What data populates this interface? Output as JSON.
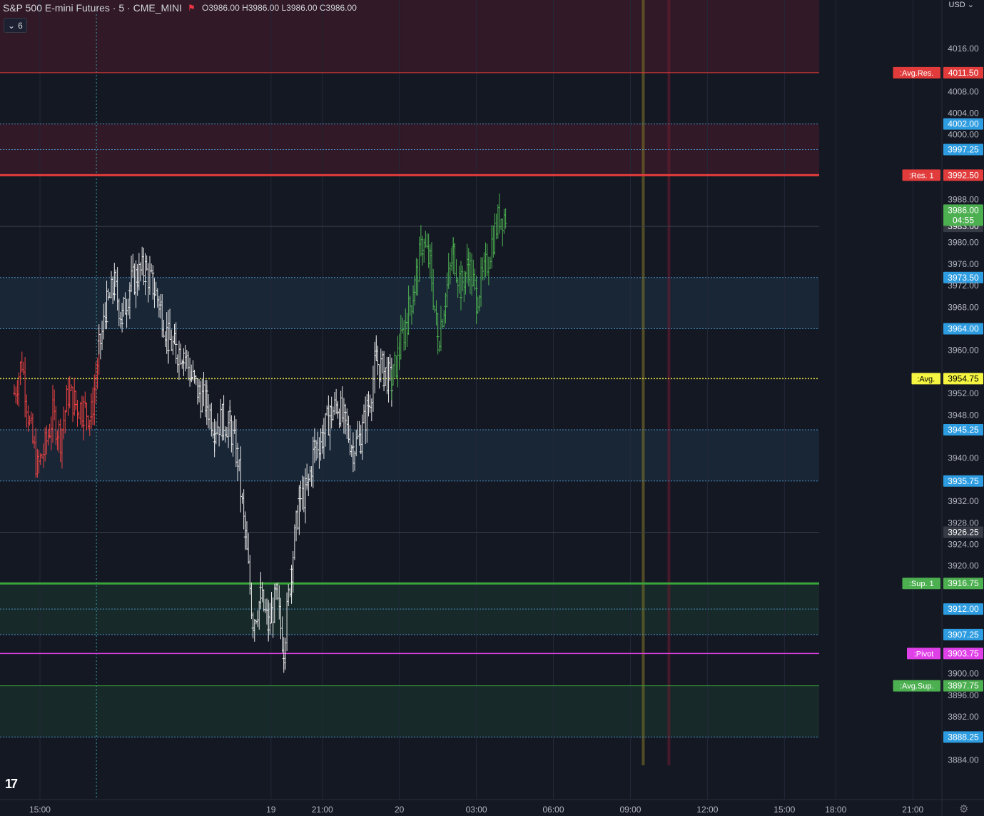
{
  "header": {
    "title": "S&P 500 E-mini Futures · 5 · CME_MINI",
    "ohlc": "O3986.00  H3986.00  L3986.00  C3986.00",
    "indicator_count": "6",
    "currency": "USD"
  },
  "colors": {
    "background": "#141823",
    "grid": "#232838",
    "axis_text": "#b2b5be",
    "blue_line": "#4a90c2",
    "red_level": "#e13b3b",
    "green_level": "#3aa53a",
    "magenta_level": "#e040e8",
    "yellow_level": "#e6e646",
    "bar_red": "#ef4444",
    "bar_white": "#e6e6e6",
    "bar_green": "#4caf50"
  },
  "chart_data": {
    "type": "bar",
    "ylim": [
      3883,
      4025
    ],
    "y_ticks": [
      4016,
      4008,
      4004,
      4000,
      3988,
      3980,
      3976,
      3972,
      3968,
      3960,
      3952,
      3948,
      3940,
      3932,
      3928,
      3924,
      3920,
      3900,
      3896,
      3892,
      3884
    ],
    "x_ticks": [
      {
        "label": "15:00",
        "t": 15
      },
      {
        "label": "19",
        "t": 24
      },
      {
        "label": "21:00",
        "t": 26
      },
      {
        "label": "20",
        "t": 29
      },
      {
        "label": "03:00",
        "t": 32
      },
      {
        "label": "06:00",
        "t": 35
      },
      {
        "label": "09:00",
        "t": 38
      },
      {
        "label": "12:00",
        "t": 41
      },
      {
        "label": "15:00",
        "t": 44
      },
      {
        "label": "18:00",
        "t": 46
      },
      {
        "label": "21:00",
        "t": 49
      }
    ],
    "levels": [
      {
        "label": ":Avg.Res.",
        "price": 4011.5,
        "kind": "red"
      },
      {
        "label": "",
        "price": 4002.0,
        "kind": "blue"
      },
      {
        "label": "",
        "price": 3997.25,
        "kind": "blue"
      },
      {
        "label": ":Res. 1",
        "price": 3992.5,
        "kind": "red-thick"
      },
      {
        "label": "",
        "price": 3983.0,
        "kind": "grey"
      },
      {
        "label": "",
        "price": 3973.5,
        "kind": "blue"
      },
      {
        "label": "",
        "price": 3964.0,
        "kind": "blue"
      },
      {
        "label": ":Avg.",
        "price": 3954.75,
        "kind": "yellow"
      },
      {
        "label": "",
        "price": 3945.25,
        "kind": "blue"
      },
      {
        "label": "",
        "price": 3935.75,
        "kind": "blue"
      },
      {
        "label": "",
        "price": 3926.25,
        "kind": "grey"
      },
      {
        "label": ":Sup. 1",
        "price": 3916.75,
        "kind": "green-thick"
      },
      {
        "label": "",
        "price": 3912.0,
        "kind": "blue"
      },
      {
        "label": "",
        "price": 3907.25,
        "kind": "blue"
      },
      {
        "label": ":Pivot",
        "price": 3903.75,
        "kind": "magenta"
      },
      {
        "label": ":Avg.Sup.",
        "price": 3897.75,
        "kind": "green"
      },
      {
        "label": "",
        "price": 3888.25,
        "kind": "blue"
      }
    ],
    "zones": [
      {
        "from": 4011.5,
        "to": 4025,
        "color": "red"
      },
      {
        "from": 3992.5,
        "to": 4002.0,
        "color": "red"
      },
      {
        "from": 3964.0,
        "to": 3973.5,
        "color": "blue"
      },
      {
        "from": 3935.75,
        "to": 3945.25,
        "color": "blue"
      },
      {
        "from": 3907.25,
        "to": 3916.75,
        "color": "green"
      },
      {
        "from": 3888.25,
        "to": 3897.75,
        "color": "green"
      }
    ],
    "last_price": {
      "value": "3986.00",
      "countdown": "04:55",
      "price": 3986.0
    },
    "vertical_markers": [
      {
        "t": 38.5,
        "color": "olive"
      },
      {
        "t": 39.5,
        "color": "maroon"
      }
    ],
    "price_path": [
      {
        "t": 14.0,
        "p": 3952,
        "c": "red"
      },
      {
        "t": 14.3,
        "p": 3958,
        "c": "red"
      },
      {
        "t": 14.6,
        "p": 3946,
        "c": "red"
      },
      {
        "t": 14.9,
        "p": 3938,
        "c": "red"
      },
      {
        "t": 15.2,
        "p": 3942,
        "c": "red"
      },
      {
        "t": 15.5,
        "p": 3948,
        "c": "red"
      },
      {
        "t": 15.8,
        "p": 3944,
        "c": "red"
      },
      {
        "t": 16.1,
        "p": 3952,
        "c": "red"
      },
      {
        "t": 16.4,
        "p": 3950,
        "c": "red"
      },
      {
        "t": 16.7,
        "p": 3949,
        "c": "red"
      },
      {
        "t": 17.0,
        "p": 3948,
        "c": "red"
      },
      {
        "t": 17.3,
        "p": 3960,
        "c": "white"
      },
      {
        "t": 17.6,
        "p": 3968,
        "c": "white"
      },
      {
        "t": 17.9,
        "p": 3972,
        "c": "white"
      },
      {
        "t": 18.2,
        "p": 3966,
        "c": "white"
      },
      {
        "t": 18.5,
        "p": 3972,
        "c": "white"
      },
      {
        "t": 18.8,
        "p": 3974,
        "c": "white"
      },
      {
        "t": 19.1,
        "p": 3975,
        "c": "white"
      },
      {
        "t": 19.4,
        "p": 3972,
        "c": "white"
      },
      {
        "t": 19.7,
        "p": 3968,
        "c": "white"
      },
      {
        "t": 20.0,
        "p": 3962,
        "c": "white"
      },
      {
        "t": 20.3,
        "p": 3960,
        "c": "white"
      },
      {
        "t": 20.6,
        "p": 3960,
        "c": "white"
      },
      {
        "t": 20.9,
        "p": 3955,
        "c": "white"
      },
      {
        "t": 21.2,
        "p": 3952,
        "c": "white"
      },
      {
        "t": 21.5,
        "p": 3950,
        "c": "white"
      },
      {
        "t": 21.8,
        "p": 3946,
        "c": "white"
      },
      {
        "t": 22.1,
        "p": 3947,
        "c": "white"
      },
      {
        "t": 22.4,
        "p": 3946,
        "c": "white"
      },
      {
        "t": 22.7,
        "p": 3940,
        "c": "white"
      },
      {
        "t": 23.0,
        "p": 3925,
        "c": "white"
      },
      {
        "t": 23.3,
        "p": 3910,
        "c": "white"
      },
      {
        "t": 23.6,
        "p": 3914,
        "c": "white"
      },
      {
        "t": 23.9,
        "p": 3909,
        "c": "white"
      },
      {
        "t": 24.2,
        "p": 3914,
        "c": "white"
      },
      {
        "t": 24.5,
        "p": 3905,
        "c": "white"
      },
      {
        "t": 24.8,
        "p": 3920,
        "c": "white"
      },
      {
        "t": 25.1,
        "p": 3932,
        "c": "white"
      },
      {
        "t": 25.4,
        "p": 3934,
        "c": "white"
      },
      {
        "t": 25.7,
        "p": 3942,
        "c": "white"
      },
      {
        "t": 26.0,
        "p": 3944,
        "c": "white"
      },
      {
        "t": 26.3,
        "p": 3948,
        "c": "white"
      },
      {
        "t": 26.6,
        "p": 3950,
        "c": "white"
      },
      {
        "t": 26.9,
        "p": 3946,
        "c": "white"
      },
      {
        "t": 27.2,
        "p": 3942,
        "c": "white"
      },
      {
        "t": 27.5,
        "p": 3944,
        "c": "white"
      },
      {
        "t": 27.8,
        "p": 3950,
        "c": "white"
      },
      {
        "t": 28.1,
        "p": 3958,
        "c": "white"
      },
      {
        "t": 28.4,
        "p": 3956,
        "c": "white"
      },
      {
        "t": 28.7,
        "p": 3954,
        "c": "green"
      },
      {
        "t": 29.0,
        "p": 3960,
        "c": "green"
      },
      {
        "t": 29.3,
        "p": 3966,
        "c": "green"
      },
      {
        "t": 29.6,
        "p": 3972,
        "c": "green"
      },
      {
        "t": 29.9,
        "p": 3980,
        "c": "green"
      },
      {
        "t": 30.2,
        "p": 3976,
        "c": "green"
      },
      {
        "t": 30.5,
        "p": 3962,
        "c": "green"
      },
      {
        "t": 30.8,
        "p": 3970,
        "c": "green"
      },
      {
        "t": 31.1,
        "p": 3978,
        "c": "green"
      },
      {
        "t": 31.4,
        "p": 3972,
        "c": "green"
      },
      {
        "t": 31.7,
        "p": 3976,
        "c": "green"
      },
      {
        "t": 32.0,
        "p": 3970,
        "c": "green"
      },
      {
        "t": 32.3,
        "p": 3974,
        "c": "green"
      },
      {
        "t": 32.6,
        "p": 3980,
        "c": "green"
      },
      {
        "t": 32.9,
        "p": 3985,
        "c": "green"
      },
      {
        "t": 33.2,
        "p": 3985,
        "c": "green"
      }
    ]
  }
}
